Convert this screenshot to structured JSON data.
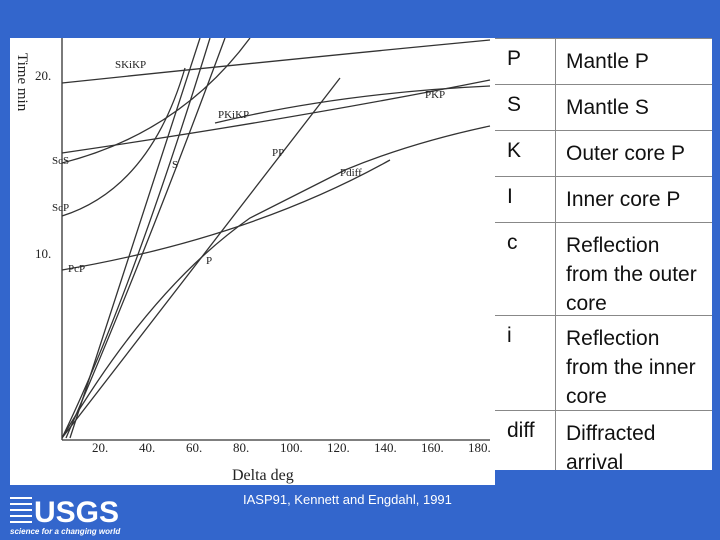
{
  "figure": {
    "y_axis_label": "Time min",
    "x_axis_label": "Delta deg",
    "y_tick_labels": [
      "20.",
      "10."
    ],
    "x_tick_labels": [
      "20.",
      "40.",
      "60.",
      "80.",
      "100.",
      "120.",
      "140.",
      "160.",
      "180."
    ],
    "phase_labels": [
      "SKiKP",
      "PKiKP",
      "PKP",
      "PP",
      "S",
      "ScS",
      "ScP",
      "PcP",
      "P",
      "Pdiff"
    ]
  },
  "caption": "IASP91, Kennett and Engdahl, 1991",
  "logo": {
    "name": "USGS",
    "tagline": "science for a changing world"
  },
  "table": {
    "rows": [
      [
        "P",
        "Mantle P"
      ],
      [
        "S",
        "Mantle S"
      ],
      [
        "K",
        "Outer core P"
      ],
      [
        "I",
        "Inner core P"
      ],
      [
        "c",
        "Reflection from the outer core"
      ],
      [
        "i",
        "Reflection from the inner core"
      ],
      [
        "diff",
        "Diffracted arrival"
      ]
    ]
  }
}
